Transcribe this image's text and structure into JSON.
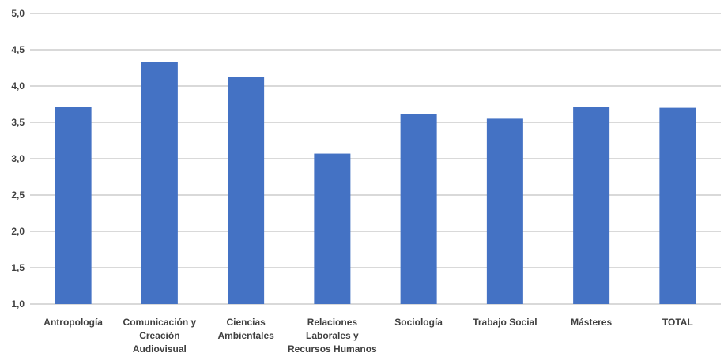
{
  "chart_data": {
    "type": "bar",
    "title": "",
    "xlabel": "",
    "ylabel": "",
    "categories": [
      [
        "Antropología"
      ],
      [
        "Comunicación y",
        "Creación",
        "Audiovisual"
      ],
      [
        "Ciencias",
        "Ambientales"
      ],
      [
        "Relaciones",
        "Laborales y",
        "Recursos Humanos"
      ],
      [
        "Sociología"
      ],
      [
        "Trabajo Social"
      ],
      [
        "Másteres"
      ],
      [
        "TOTAL"
      ]
    ],
    "values": [
      3.71,
      4.33,
      4.13,
      3.07,
      3.61,
      3.55,
      3.71,
      3.7
    ],
    "ylim": [
      1.0,
      5.0
    ],
    "yticks": [
      "1,0",
      "1,5",
      "2,0",
      "2,5",
      "3,0",
      "3,5",
      "4,0",
      "4,5",
      "5,0"
    ],
    "grid": true,
    "colors": {
      "bar": "#4472C4",
      "grid": "#D9D9D9",
      "text": "#404040"
    }
  }
}
